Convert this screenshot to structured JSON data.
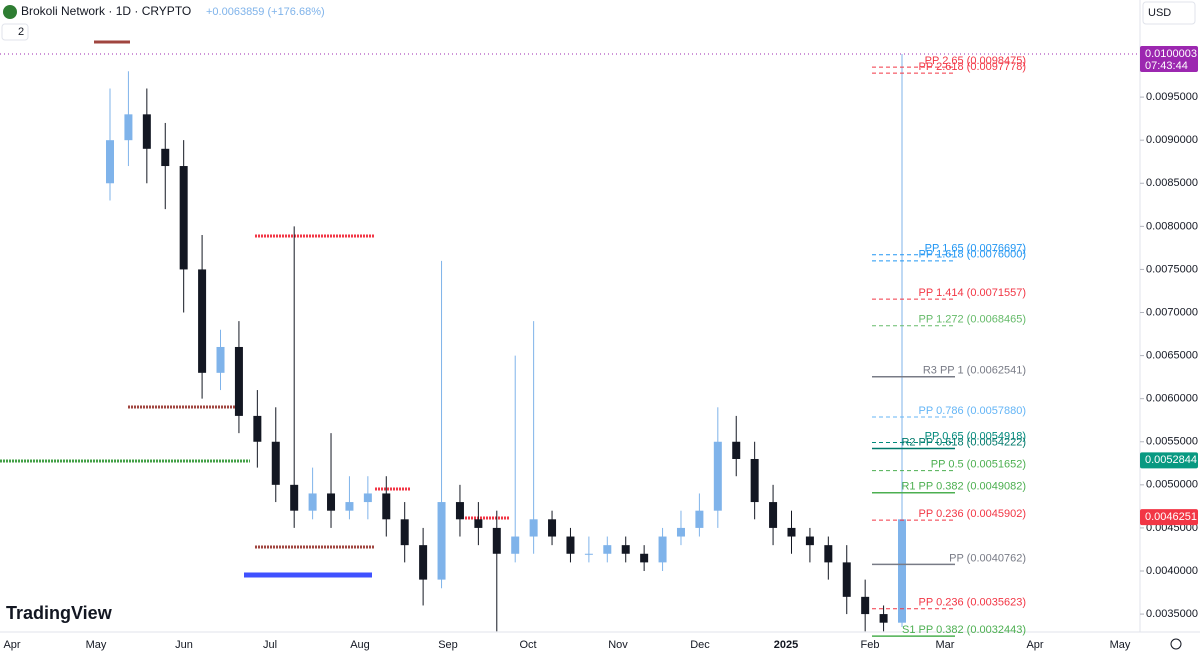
{
  "chart_data": {
    "type": "candlestick",
    "title": "Brokoli Network · 1D · CRYPTO",
    "change": "+0.0063859 (+176.68%)",
    "indicator_count": "2",
    "currency": "USD",
    "brand": "TradingView",
    "x_labels": [
      "Apr",
      "May",
      "Jun",
      "Jul",
      "Aug",
      "Sep",
      "Oct",
      "Nov",
      "Dec",
      "2025",
      "Feb",
      "Mar",
      "Apr",
      "May"
    ],
    "ylim": [
      0.003292,
      0.010627
    ],
    "yticks": [
      {
        "value": 0.0035,
        "label": "0.0035000"
      },
      {
        "value": 0.004,
        "label": "0.0040000"
      },
      {
        "value": 0.0045,
        "label": "0.0045000"
      },
      {
        "value": 0.005,
        "label": "0.0050000"
      },
      {
        "value": 0.0055,
        "label": "0.0055000"
      },
      {
        "value": 0.006,
        "label": "0.0060000"
      },
      {
        "value": 0.0065,
        "label": "0.0065000"
      },
      {
        "value": 0.007,
        "label": "0.0070000"
      },
      {
        "value": 0.0075,
        "label": "0.0075000"
      },
      {
        "value": 0.008,
        "label": "0.0080000"
      },
      {
        "value": 0.0085,
        "label": "0.0085000"
      },
      {
        "value": 0.009,
        "label": "0.0090000"
      },
      {
        "value": 0.0095,
        "label": "0.0095000"
      }
    ],
    "up_color": "#7fb3ea",
    "down_color": "#131722",
    "open": [
      0.0085,
      0.009,
      0.0093,
      0.0089,
      0.0087,
      0.0075,
      0.0063,
      0.0066,
      0.0058,
      0.0055,
      0.005,
      0.0047,
      0.0049,
      0.0047,
      0.0048,
      0.0049,
      0.0046,
      0.0043,
      0.0039,
      0.0048,
      0.0046,
      0.0045,
      0.0042,
      0.0044,
      0.0046,
      0.0044,
      0.0042,
      0.0042,
      0.0043,
      0.0042,
      0.0041,
      0.0044,
      0.0045,
      0.0047,
      0.0055,
      0.0053,
      0.0048,
      0.0045,
      0.0044,
      0.0043,
      0.0041,
      0.0037,
      0.0035,
      0.0034
    ],
    "high": [
      0.0096,
      0.0098,
      0.0096,
      0.0092,
      0.009,
      0.0079,
      0.0068,
      0.0069,
      0.0061,
      0.0059,
      0.008,
      0.0052,
      0.0056,
      0.0051,
      0.0051,
      0.0051,
      0.0048,
      0.0045,
      0.0076,
      0.005,
      0.0048,
      0.0047,
      0.0065,
      0.0069,
      0.0047,
      0.0045,
      0.0044,
      0.0044,
      0.0044,
      0.0043,
      0.0045,
      0.0047,
      0.0049,
      0.0059,
      0.0058,
      0.0055,
      0.005,
      0.0047,
      0.0045,
      0.0044,
      0.0043,
      0.0039,
      0.0036,
      0.0100003
    ],
    "low": [
      0.0083,
      0.0087,
      0.0085,
      0.0082,
      0.007,
      0.006,
      0.0061,
      0.0056,
      0.0052,
      0.0048,
      0.0045,
      0.0046,
      0.0045,
      0.0046,
      0.0046,
      0.0044,
      0.0041,
      0.0036,
      0.0038,
      0.0044,
      0.0043,
      0.0033,
      0.0041,
      0.0042,
      0.0043,
      0.0041,
      0.0041,
      0.0041,
      0.0041,
      0.004,
      0.004,
      0.0043,
      0.0044,
      0.0045,
      0.0051,
      0.0046,
      0.0043,
      0.0042,
      0.0041,
      0.0039,
      0.0035,
      0.0033,
      0.0033,
      0.00335
    ],
    "close": [
      0.009,
      0.0093,
      0.0089,
      0.0087,
      0.0075,
      0.0063,
      0.0066,
      0.0058,
      0.0055,
      0.005,
      0.0047,
      0.0049,
      0.0047,
      0.0048,
      0.0049,
      0.0046,
      0.0043,
      0.0039,
      0.0048,
      0.0046,
      0.0045,
      0.0042,
      0.0044,
      0.0046,
      0.0044,
      0.0042,
      0.0042,
      0.0043,
      0.0042,
      0.0041,
      0.0044,
      0.0045,
      0.0047,
      0.0055,
      0.0053,
      0.0048,
      0.0045,
      0.0044,
      0.0043,
      0.0041,
      0.0037,
      0.0035,
      0.0034,
      0.0046
    ],
    "levels": [
      {
        "label": "PP 2.65 (0.0098475)",
        "value": 0.0098475,
        "color": "#f23645",
        "dashed": true
      },
      {
        "label": "PP 2.618 (0.0097778)",
        "value": 0.0097778,
        "color": "#f23645",
        "dashed": true
      },
      {
        "label": "PP 1.65 (0.0076697)",
        "value": 0.0076697,
        "color": "#2196f3",
        "dashed": true
      },
      {
        "label": "PP 1.618 (0.0076000)",
        "value": 0.0076,
        "color": "#2196f3",
        "dashed": true
      },
      {
        "label": "PP 1.414 (0.0071557)",
        "value": 0.0071557,
        "color": "#f23645",
        "dashed": true
      },
      {
        "label": "PP 1.272 (0.0068465)",
        "value": 0.0068465,
        "color": "#66bb6a",
        "dashed": true
      },
      {
        "label": "R3 PP 1 (0.0062541)",
        "value": 0.0062541,
        "color": "#787b86",
        "dashed": false
      },
      {
        "label": "PP 0.786 (0.0057880)",
        "value": 0.005788,
        "color": "#64b5f6",
        "dashed": true
      },
      {
        "label": "PP 0.65 (0.0054918)",
        "value": 0.0054918,
        "color": "#00897b",
        "dashed": true
      },
      {
        "label": "R2 PP 0.618 (0.0054222)",
        "value": 0.0054222,
        "color": "#00796b",
        "dashed": false
      },
      {
        "label": "PP 0.5 (0.0051652)",
        "value": 0.0051652,
        "color": "#4caf50",
        "dashed": true
      },
      {
        "label": "R1 PP 0.382 (0.0049082)",
        "value": 0.0049082,
        "color": "#4caf50",
        "dashed": false
      },
      {
        "label": "PP 0.236 (0.0045902)",
        "value": 0.0045902,
        "color": "#f23645",
        "dashed": true
      },
      {
        "label": "PP (0.0040762)",
        "value": 0.0040762,
        "color": "#787b86",
        "dashed": false
      },
      {
        "label": "PP 0.236 (0.0035623)",
        "value": 0.0035623,
        "color": "#f23645",
        "dashed": true
      },
      {
        "label": "S1 PP 0.382 (0.0032443)",
        "value": 0.0032443,
        "color": "#4caf50",
        "dashed": false
      }
    ],
    "price_tags": [
      {
        "value": 0.0100003,
        "label": "0.0100003",
        "sub": "07:43:44",
        "color": "#9c27b0"
      },
      {
        "value": 0.0052844,
        "label": "0.0052844",
        "color": "#089981"
      },
      {
        "value": 0.0046251,
        "label": "0.0046251",
        "color": "#f23645"
      }
    ]
  }
}
